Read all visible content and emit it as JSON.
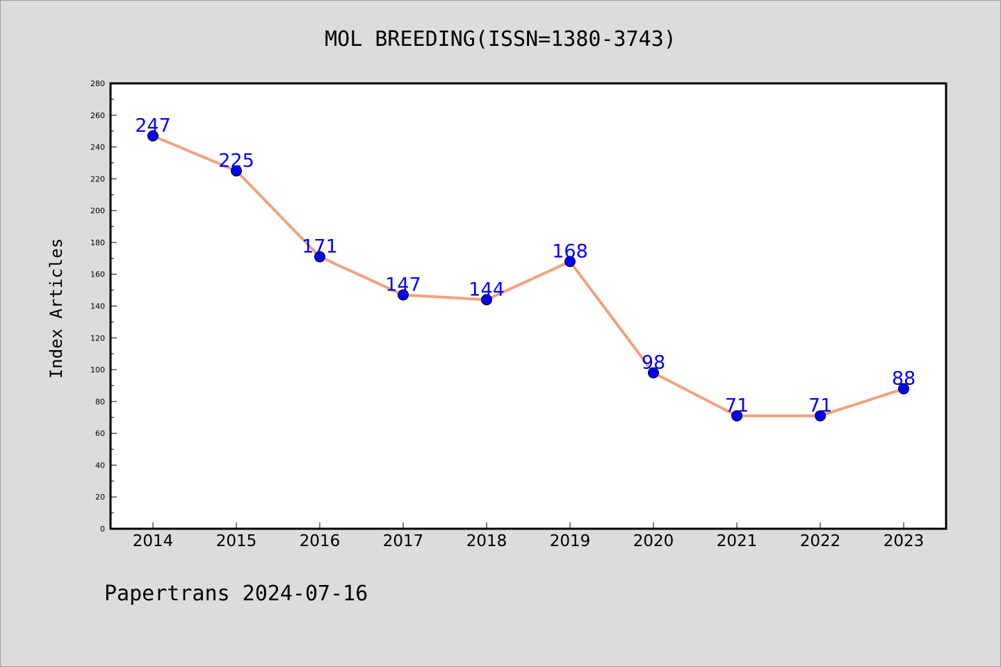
{
  "chart_data": {
    "type": "line",
    "title": "MOL BREEDING(ISSN=1380-3743)",
    "ylabel": "Index Articles",
    "xlabel": "",
    "categories": [
      "2014",
      "2015",
      "2016",
      "2017",
      "2018",
      "2019",
      "2020",
      "2021",
      "2022",
      "2023"
    ],
    "series": [
      {
        "values": [
          247,
          225,
          171,
          147,
          144,
          168,
          98,
          71,
          71,
          88
        ]
      }
    ],
    "ylim": [
      0,
      280
    ],
    "yticks": [
      0,
      20,
      40,
      60,
      80,
      100,
      120,
      140,
      160,
      180,
      200,
      220,
      240,
      260,
      280
    ],
    "grid": false,
    "legend": "none",
    "colors": {
      "line": "#f4a07e",
      "marker": "#0000ff",
      "data_label": "#0000ff",
      "plot_bg": "#ffffff",
      "figure_bg": "#dcdcdc"
    }
  },
  "footer": {
    "watermark": "Papertrans 2024-07-16"
  }
}
